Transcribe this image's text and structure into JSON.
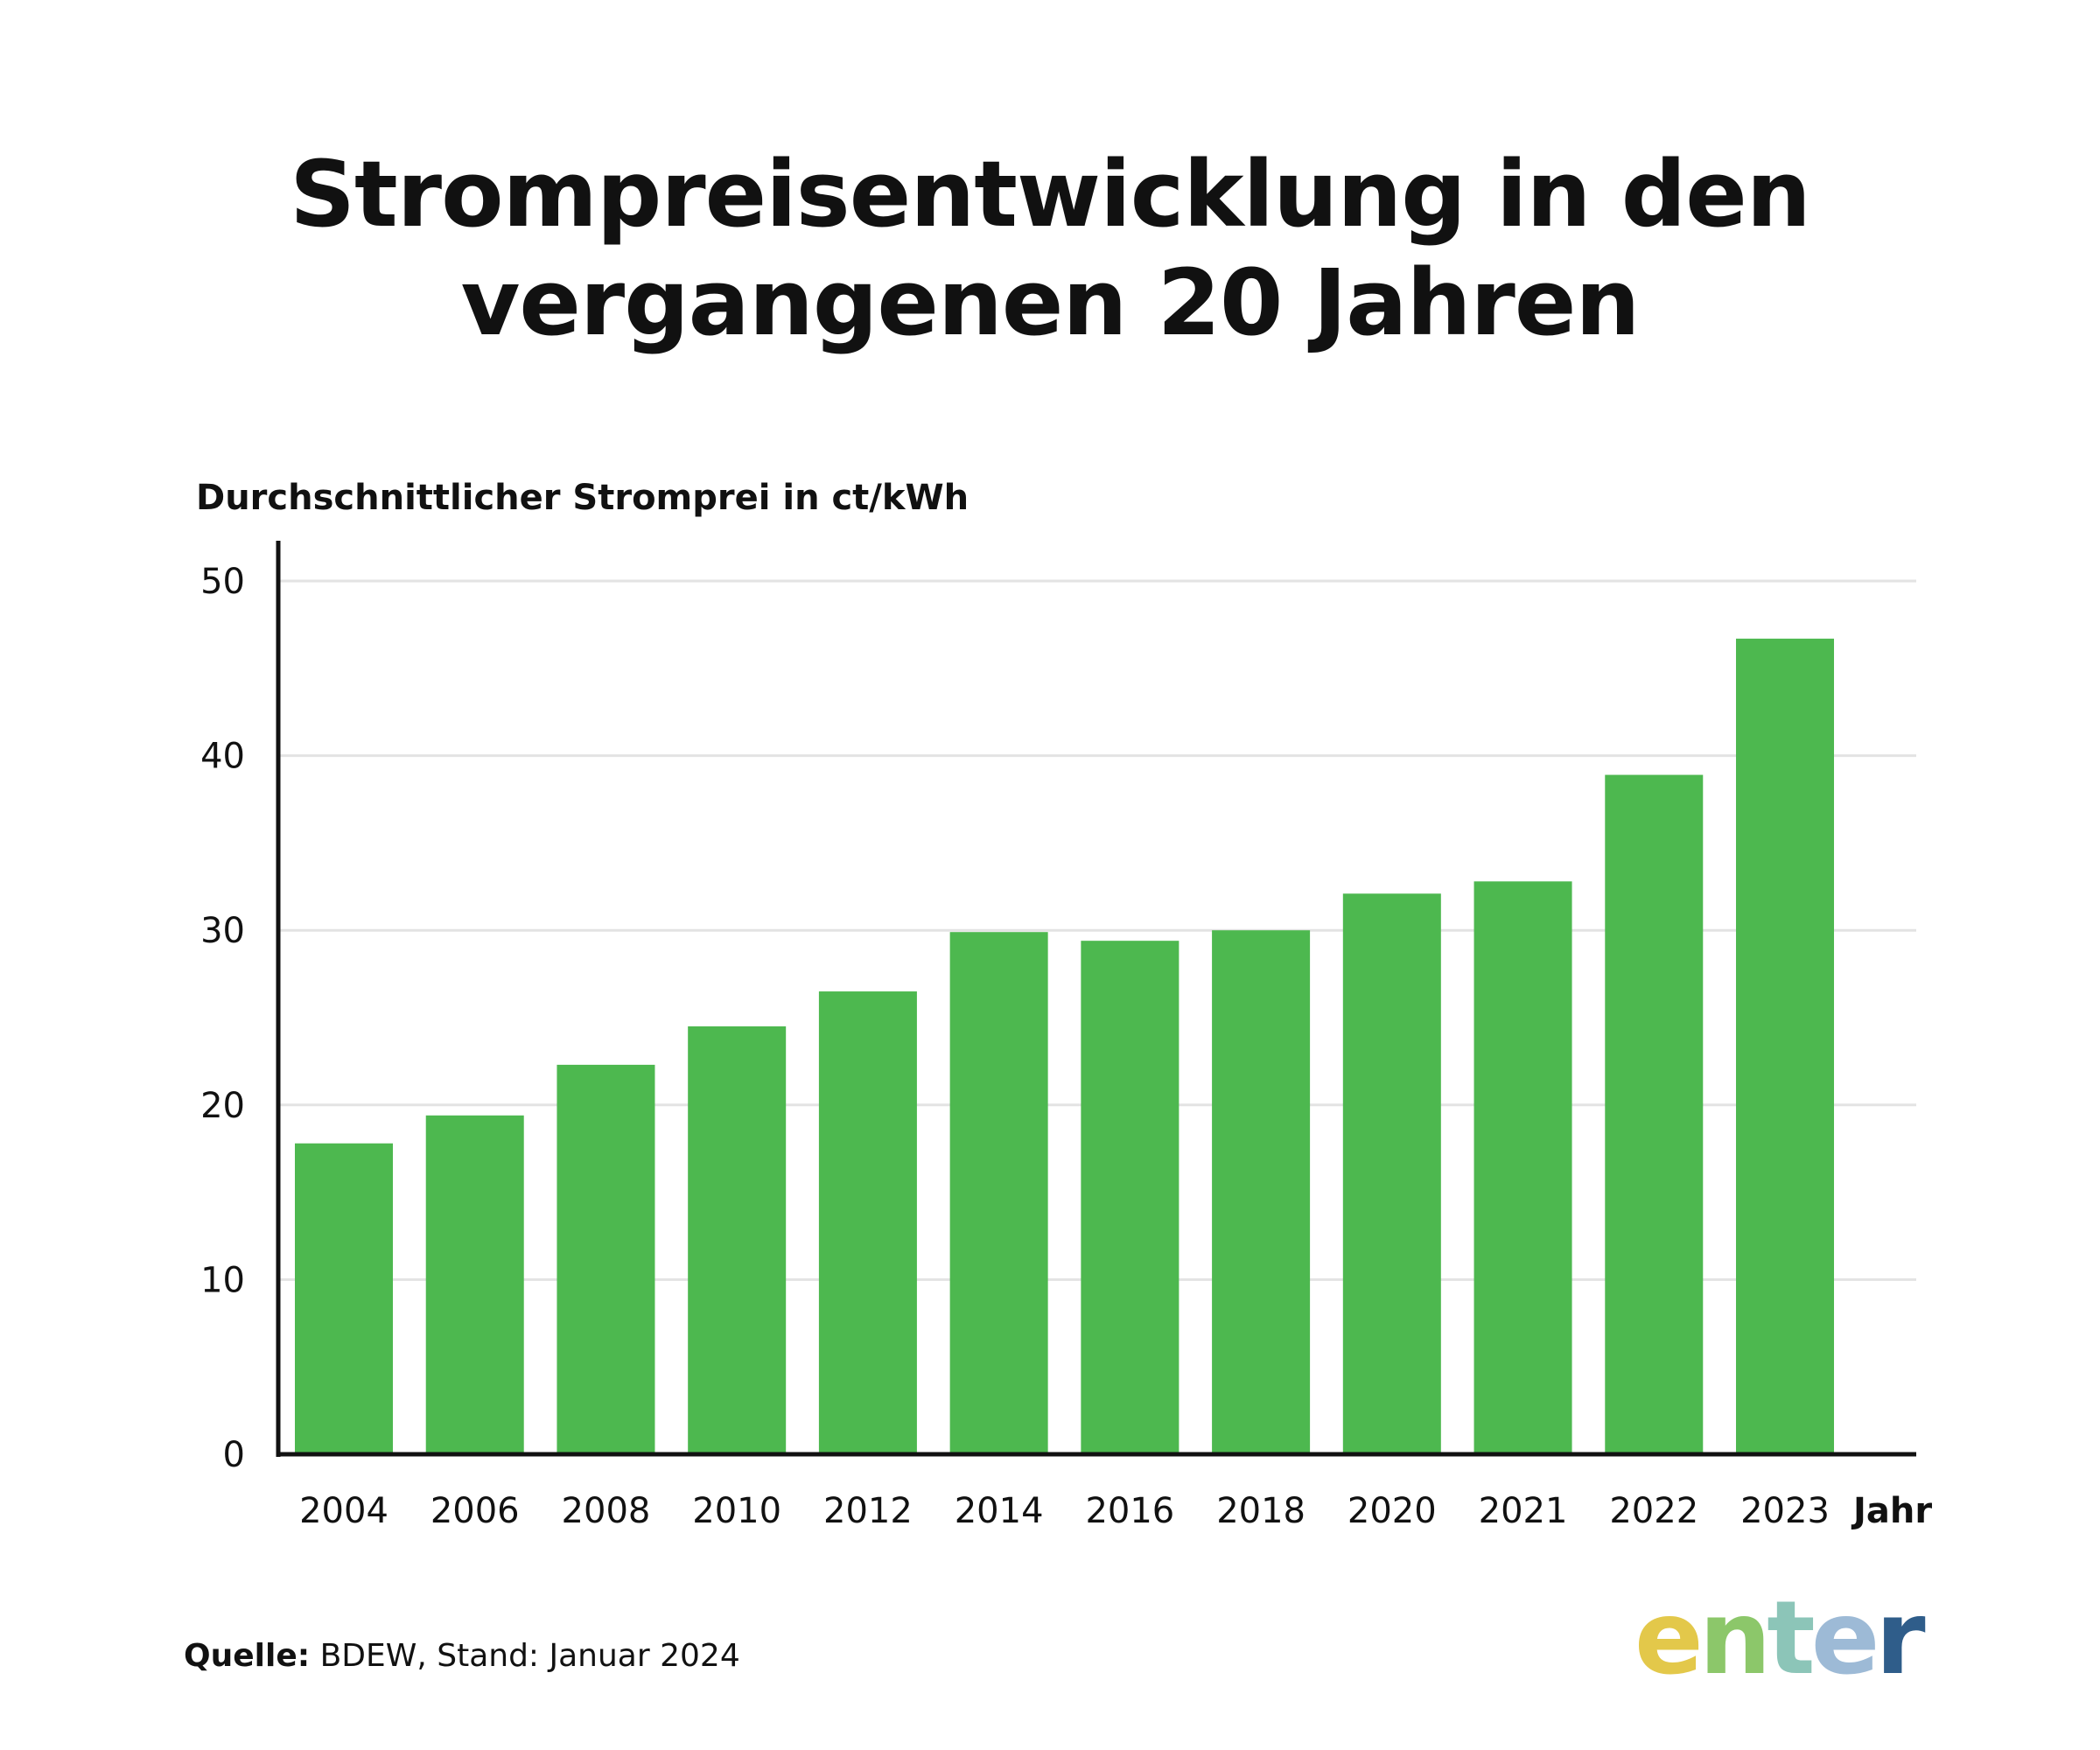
{
  "title_lines": [
    "Strompreisentwicklung in den",
    "vergangenen 20 Jahren"
  ],
  "source": {
    "label": "Quelle:",
    "text": " BDEW, Stand: Januar 2024"
  },
  "logo": {
    "text": "enter",
    "colors": [
      "#E3C84A",
      "#8CC76A",
      "#8CC5B8",
      "#9DBAD6",
      "#2F5D8A"
    ]
  },
  "colors": {
    "bar": "#4DB84F",
    "grid": "#E3E3E3",
    "axis": "#111111"
  },
  "chart_data": {
    "type": "bar",
    "title": "",
    "ylabel": "Durchschnittlicher Stromprei in ct/kWh",
    "xlabel": "Jahr",
    "ylim": [
      0,
      50
    ],
    "yticks": [
      0,
      10,
      20,
      30,
      40,
      50
    ],
    "grid": true,
    "categories": [
      "2004",
      "2006",
      "2008",
      "2010",
      "2012",
      "2014",
      "2016",
      "2018",
      "2020",
      "2021",
      "2022",
      "2023"
    ],
    "values": [
      17.8,
      19.4,
      22.3,
      24.5,
      26.5,
      29.9,
      29.4,
      30.0,
      32.1,
      32.8,
      38.9,
      46.7
    ]
  }
}
